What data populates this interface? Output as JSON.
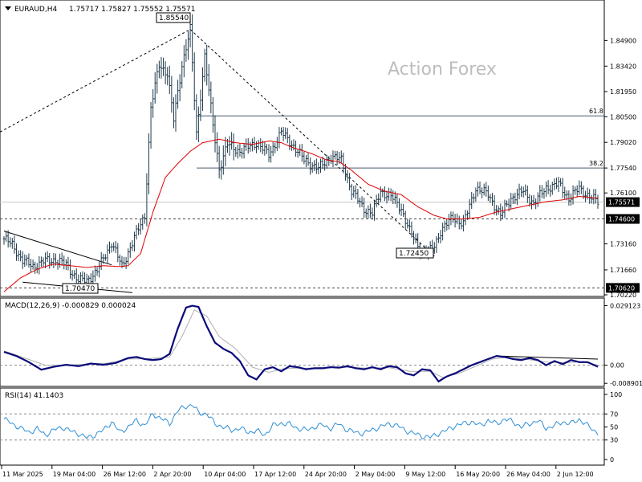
{
  "chart_data": [
    {
      "type": "candlestick",
      "symbol_label": "EURAUD,H4",
      "ohlc_label": "1.75717 1.75827 1.75552 1.75571",
      "watermark": "Action Forex",
      "ylim": [
        1.7022,
        1.8705
      ],
      "y_ticks": [
        "1.84900",
        "1.83420",
        "1.81950",
        "1.80500",
        "1.79020",
        "1.77540",
        "1.76100",
        "1.73160",
        "1.71660",
        "1.70220"
      ],
      "x_tick_labels": [
        "11 Mar 2025",
        "19 Mar 04:00",
        "26 Mar 12:00",
        "2 Apr 20:00",
        "10 Apr 04:00",
        "17 Apr 12:00",
        "24 Apr 20:00",
        "2 May 04:00",
        "9 May 12:00",
        "16 May 20:00",
        "26 May 04:00",
        "2 Jun 12:00"
      ],
      "current_price_label": "1.75571",
      "current_price": 1.75571,
      "support_label": "1.74600",
      "support_price": 1.746,
      "low_line_label": "1.70620",
      "low_line_price": 1.7062,
      "annotations": {
        "high": "1.85540",
        "low_left": "1.70470",
        "low_right": "1.72450"
      },
      "fib": [
        {
          "label": "61.8",
          "price": 1.8055
        },
        {
          "label": "38.2",
          "price": 1.7754
        }
      ],
      "price_anchors": [
        [
          0,
          1.7345
        ],
        [
          4,
          1.731
        ],
        [
          9,
          1.722
        ],
        [
          14,
          1.7185
        ],
        [
          19,
          1.7215
        ],
        [
          25,
          1.7225
        ],
        [
          30,
          1.7195
        ],
        [
          36,
          1.7105
        ],
        [
          40,
          1.7105
        ],
        [
          45,
          1.716
        ],
        [
          52,
          1.7325
        ],
        [
          57,
          1.7185
        ],
        [
          63,
          1.735
        ],
        [
          68,
          1.748
        ],
        [
          71,
          1.81
        ],
        [
          75,
          1.835
        ],
        [
          79,
          1.83
        ],
        [
          82,
          1.803
        ],
        [
          86,
          1.835
        ],
        [
          90,
          1.8554
        ],
        [
          93,
          1.795
        ],
        [
          97,
          1.84
        ],
        [
          101,
          1.8
        ],
        [
          104,
          1.775
        ],
        [
          108,
          1.789
        ],
        [
          114,
          1.785
        ],
        [
          122,
          1.79
        ],
        [
          128,
          1.783
        ],
        [
          134,
          1.796
        ],
        [
          140,
          1.788
        ],
        [
          145,
          1.78
        ],
        [
          152,
          1.775
        ],
        [
          158,
          1.782
        ],
        [
          163,
          1.78
        ],
        [
          168,
          1.762
        ],
        [
          174,
          1.752
        ],
        [
          178,
          1.749
        ],
        [
          182,
          1.762
        ],
        [
          187,
          1.759
        ],
        [
          192,
          1.752
        ],
        [
          196,
          1.739
        ],
        [
          202,
          1.7265
        ],
        [
          207,
          1.728
        ],
        [
          211,
          1.739
        ],
        [
          217,
          1.747
        ],
        [
          222,
          1.743
        ],
        [
          228,
          1.764
        ],
        [
          234,
          1.76
        ],
        [
          240,
          1.748
        ],
        [
          245,
          1.758
        ],
        [
          251,
          1.762
        ],
        [
          256,
          1.755
        ],
        [
          262,
          1.764
        ],
        [
          268,
          1.766
        ],
        [
          273,
          1.758
        ],
        [
          278,
          1.7635
        ],
        [
          284,
          1.758
        ],
        [
          287,
          1.7557
        ]
      ],
      "ma_anchors": [
        [
          0,
          1.704
        ],
        [
          8,
          1.712
        ],
        [
          16,
          1.717
        ],
        [
          24,
          1.72
        ],
        [
          32,
          1.719
        ],
        [
          40,
          1.718
        ],
        [
          48,
          1.719
        ],
        [
          56,
          1.7185
        ],
        [
          60,
          1.719
        ],
        [
          66,
          1.726
        ],
        [
          72,
          1.75
        ],
        [
          78,
          1.77
        ],
        [
          84,
          1.778
        ],
        [
          90,
          1.785
        ],
        [
          96,
          1.79
        ],
        [
          104,
          1.792
        ],
        [
          112,
          1.79
        ],
        [
          120,
          1.789
        ],
        [
          128,
          1.791
        ],
        [
          134,
          1.79
        ],
        [
          140,
          1.787
        ],
        [
          148,
          1.784
        ],
        [
          156,
          1.78
        ],
        [
          162,
          1.779
        ],
        [
          168,
          1.774
        ],
        [
          176,
          1.766
        ],
        [
          184,
          1.762
        ],
        [
          192,
          1.76
        ],
        [
          200,
          1.753
        ],
        [
          208,
          1.748
        ],
        [
          214,
          1.746
        ],
        [
          222,
          1.746
        ],
        [
          230,
          1.747
        ],
        [
          238,
          1.75
        ],
        [
          246,
          1.752
        ],
        [
          254,
          1.754
        ],
        [
          262,
          1.756
        ],
        [
          270,
          1.757
        ],
        [
          278,
          1.759
        ],
        [
          287,
          1.758
        ]
      ],
      "fib_anchor_points": {
        "start_bar": 0,
        "start_price": 1.7962,
        "high_bar": 90,
        "high_price": 1.8554,
        "low_bar": 208,
        "low_price": 1.7245
      },
      "wedge_lines": [
        {
          "bar1": 0,
          "price1": 1.739,
          "bar2": 52,
          "price2": 1.7195
        },
        {
          "bar1": 9,
          "price1": 1.7095,
          "bar2": 62,
          "price2": 1.7035
        }
      ],
      "range_line": {
        "bar1": 240,
        "price1": 1.7705,
        "bar2": 287,
        "price2": 1.768
      }
    },
    {
      "type": "line",
      "label": "MACD(12,26,9) -0.000829 0.000024",
      "ylim": [
        -0.01,
        0.0305
      ],
      "y_ticks": [
        "0.029123",
        "0.00",
        "-0.008901"
      ],
      "macd_anchors": [
        [
          0,
          0.0065
        ],
        [
          6,
          0.0045
        ],
        [
          12,
          0.0015
        ],
        [
          18,
          -0.0022
        ],
        [
          24,
          -0.0008
        ],
        [
          30,
          0.0002
        ],
        [
          36,
          -0.0005
        ],
        [
          42,
          0.0008
        ],
        [
          48,
          0.0002
        ],
        [
          54,
          0.0011
        ],
        [
          60,
          0.0035
        ],
        [
          64,
          0.004
        ],
        [
          68,
          0.003
        ],
        [
          72,
          0.0025
        ],
        [
          76,
          0.003
        ],
        [
          80,
          0.0055
        ],
        [
          84,
          0.018
        ],
        [
          88,
          0.0282
        ],
        [
          91,
          0.0291
        ],
        [
          94,
          0.0285
        ],
        [
          98,
          0.019
        ],
        [
          102,
          0.011
        ],
        [
          106,
          0.008
        ],
        [
          110,
          0.006
        ],
        [
          114,
          0.002
        ],
        [
          118,
          -0.005
        ],
        [
          122,
          -0.007
        ],
        [
          126,
          -0.002
        ],
        [
          130,
          -0.001
        ],
        [
          134,
          -0.003
        ],
        [
          138,
          -0.0005
        ],
        [
          142,
          -0.001
        ],
        [
          146,
          -0.002
        ],
        [
          150,
          -0.0015
        ],
        [
          154,
          -0.0015
        ],
        [
          158,
          -0.001
        ],
        [
          162,
          -0.0012
        ],
        [
          166,
          -0.0005
        ],
        [
          170,
          -0.0015
        ],
        [
          174,
          -0.002
        ],
        [
          178,
          -0.001
        ],
        [
          182,
          -0.002
        ],
        [
          186,
          -0.0005
        ],
        [
          190,
          -0.001
        ],
        [
          194,
          -0.004
        ],
        [
          198,
          -0.005
        ],
        [
          202,
          -0.002
        ],
        [
          206,
          -0.0025
        ],
        [
          210,
          -0.008
        ],
        [
          214,
          -0.0055
        ],
        [
          218,
          -0.004
        ],
        [
          222,
          -0.002
        ],
        [
          226,
          0.0
        ],
        [
          230,
          0.0015
        ],
        [
          234,
          0.003
        ],
        [
          238,
          0.0045
        ],
        [
          242,
          0.004
        ],
        [
          246,
          0.003
        ],
        [
          250,
          0.0025
        ],
        [
          254,
          0.0035
        ],
        [
          258,
          0.0025
        ],
        [
          262,
          0.0
        ],
        [
          266,
          0.002
        ],
        [
          270,
          0.0005
        ],
        [
          274,
          0.0025
        ],
        [
          278,
          0.0015
        ],
        [
          282,
          0.0015
        ],
        [
          287,
          -0.0008
        ]
      ],
      "signal_anchors": [
        [
          0,
          0.007
        ],
        [
          10,
          0.0035
        ],
        [
          20,
          0.0
        ],
        [
          30,
          0.0
        ],
        [
          40,
          0.0005
        ],
        [
          50,
          0.001
        ],
        [
          60,
          0.003
        ],
        [
          70,
          0.0032
        ],
        [
          80,
          0.004
        ],
        [
          86,
          0.014
        ],
        [
          92,
          0.027
        ],
        [
          98,
          0.024
        ],
        [
          104,
          0.014
        ],
        [
          112,
          0.008
        ],
        [
          120,
          -0.001
        ],
        [
          128,
          -0.0035
        ],
        [
          136,
          -0.0015
        ],
        [
          146,
          -0.0015
        ],
        [
          156,
          -0.0012
        ],
        [
          166,
          -0.001
        ],
        [
          176,
          -0.0015
        ],
        [
          186,
          -0.0012
        ],
        [
          196,
          -0.003
        ],
        [
          206,
          -0.003
        ],
        [
          212,
          -0.006
        ],
        [
          220,
          -0.004
        ],
        [
          228,
          -0.0005
        ],
        [
          236,
          0.003
        ],
        [
          244,
          0.004
        ],
        [
          252,
          0.003
        ],
        [
          262,
          0.0015
        ],
        [
          272,
          0.0012
        ],
        [
          280,
          0.0018
        ],
        [
          287,
          0.0
        ]
      ],
      "divergence_line": {
        "bar1": 238,
        "value1": 0.0045,
        "bar2": 287,
        "value2": 0.003
      }
    },
    {
      "type": "line",
      "label": "RSI(14) 41.1403",
      "ylim": [
        0,
        100
      ],
      "y_ticks": [
        "100",
        "70",
        "50",
        "30",
        "0"
      ],
      "levels": [
        70,
        30
      ],
      "rsi_anchors": [
        [
          0,
          62
        ],
        [
          4,
          55
        ],
        [
          8,
          48
        ],
        [
          12,
          42
        ],
        [
          16,
          47
        ],
        [
          20,
          38
        ],
        [
          24,
          45
        ],
        [
          28,
          50
        ],
        [
          32,
          44
        ],
        [
          36,
          40
        ],
        [
          40,
          33
        ],
        [
          44,
          38
        ],
        [
          48,
          45
        ],
        [
          52,
          58
        ],
        [
          56,
          42
        ],
        [
          60,
          50
        ],
        [
          64,
          60
        ],
        [
          68,
          52
        ],
        [
          72,
          70
        ],
        [
          76,
          63
        ],
        [
          80,
          55
        ],
        [
          84,
          75
        ],
        [
          88,
          82
        ],
        [
          91,
          84
        ],
        [
          94,
          72
        ],
        [
          98,
          70
        ],
        [
          102,
          55
        ],
        [
          106,
          50
        ],
        [
          110,
          45
        ],
        [
          114,
          48
        ],
        [
          118,
          42
        ],
        [
          122,
          44
        ],
        [
          126,
          38
        ],
        [
          130,
          52
        ],
        [
          134,
          56
        ],
        [
          138,
          54
        ],
        [
          142,
          48
        ],
        [
          146,
          45
        ],
        [
          150,
          50
        ],
        [
          154,
          53
        ],
        [
          158,
          48
        ],
        [
          162,
          55
        ],
        [
          166,
          45
        ],
        [
          170,
          42
        ],
        [
          174,
          40
        ],
        [
          178,
          46
        ],
        [
          182,
          50
        ],
        [
          186,
          55
        ],
        [
          190,
          52
        ],
        [
          194,
          45
        ],
        [
          198,
          40
        ],
        [
          202,
          36
        ],
        [
          206,
          34
        ],
        [
          210,
          40
        ],
        [
          214,
          45
        ],
        [
          218,
          52
        ],
        [
          222,
          55
        ],
        [
          226,
          58
        ],
        [
          230,
          52
        ],
        [
          234,
          60
        ],
        [
          238,
          55
        ],
        [
          242,
          62
        ],
        [
          246,
          58
        ],
        [
          250,
          50
        ],
        [
          254,
          55
        ],
        [
          258,
          60
        ],
        [
          262,
          48
        ],
        [
          266,
          52
        ],
        [
          270,
          58
        ],
        [
          274,
          55
        ],
        [
          278,
          62
        ],
        [
          282,
          52
        ],
        [
          287,
          41
        ]
      ]
    }
  ]
}
